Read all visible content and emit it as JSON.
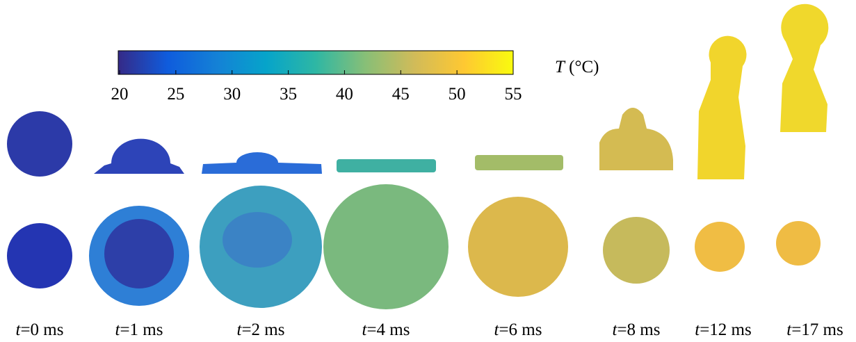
{
  "colorbar": {
    "var": "T",
    "unit": "(°C)",
    "lim": [
      20,
      55
    ],
    "ticks": [
      20,
      25,
      30,
      35,
      40,
      45,
      50,
      55
    ]
  },
  "frames": [
    {
      "var": "t",
      "label": "=0 ms"
    },
    {
      "var": "t",
      "label": "=1 ms"
    },
    {
      "var": "t",
      "label": "=2 ms"
    },
    {
      "var": "t",
      "label": "=4 ms"
    },
    {
      "var": "t",
      "label": "=6 ms"
    },
    {
      "var": "t",
      "label": "=8 ms"
    },
    {
      "var": "t",
      "label": "=12 ms"
    },
    {
      "var": "t",
      "label": "=17 ms"
    }
  ]
}
